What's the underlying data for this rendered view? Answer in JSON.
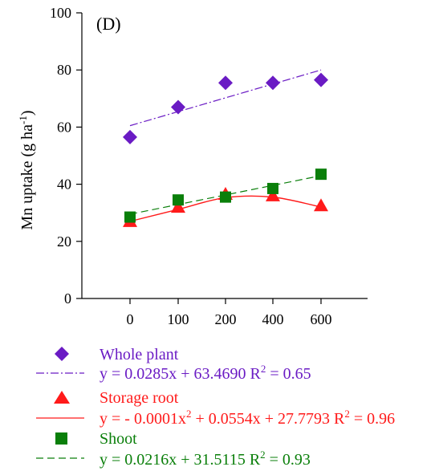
{
  "chart_data": {
    "type": "scatter",
    "panel_label": "(D)",
    "ylabel": "Mn uptake (g ha",
    "ylabel_sup": "-1",
    "ylabel_tail": ")",
    "xlabel": "",
    "categories": [
      "0",
      "100",
      "200",
      "400",
      "600"
    ],
    "ylim": [
      0,
      100
    ],
    "yticks": [
      0,
      20,
      40,
      60,
      80,
      100
    ],
    "grid": false,
    "legend_position": "below",
    "series": [
      {
        "name": "Whole plant",
        "marker": "diamond",
        "color": "#6a1bc4",
        "values": [
          56.5,
          67,
          75.5,
          75.5,
          76.5
        ],
        "trend": "linear",
        "trend_endpoints": [
          60.5,
          80
        ],
        "equation": {
          "prefix": "y = 0.0285x + 63.4690   R",
          "r2_sup": "2",
          "r2_value": " = 0.65"
        }
      },
      {
        "name": "Storage root",
        "marker": "triangle",
        "color": "#ff1a1a",
        "values": [
          27,
          32,
          36.5,
          36,
          32.5
        ],
        "trend": "quadratic",
        "trend_points": [
          27,
          31.2,
          35.3,
          35.5,
          32
        ],
        "equation": {
          "prefix": "y = - 0.0001x",
          "x2_sup": "2",
          "middle": " + 0.0554x + 27.7793   R",
          "r2_sup": "2",
          "r2_value": " = 0.96"
        }
      },
      {
        "name": "Shoot",
        "marker": "square",
        "color": "#0a7f0a",
        "values": [
          28.5,
          34.5,
          35.5,
          38.5,
          43.5
        ],
        "trend": "linear",
        "trend_endpoints": [
          29.5,
          43
        ],
        "equation": {
          "prefix": "y = 0.0216x + 31.5115   R",
          "r2_sup": "2",
          "r2_value": " = 0.93"
        }
      }
    ]
  }
}
